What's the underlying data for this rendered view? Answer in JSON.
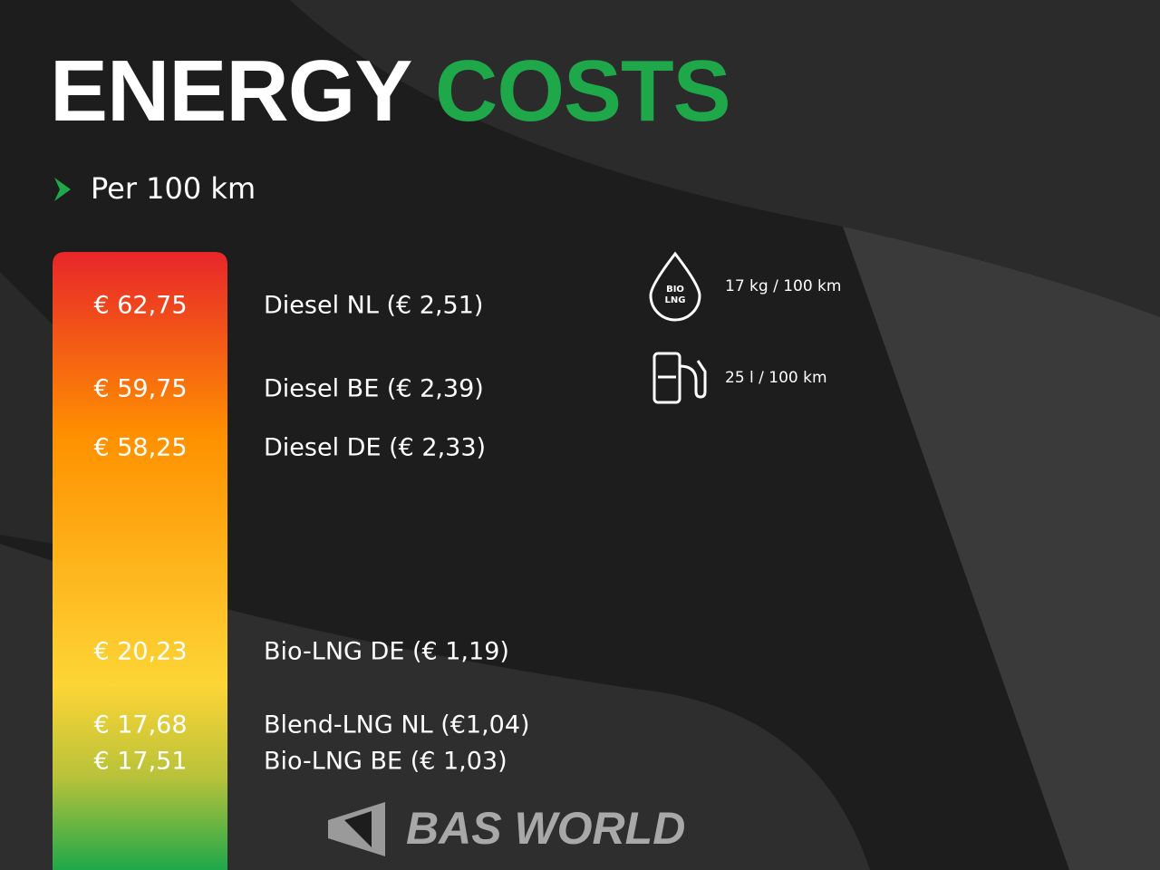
{
  "header": {
    "title_white": "ENERGY",
    "title_green": "COSTS",
    "subtitle": "Per 100 km"
  },
  "items": [
    {
      "cost": "€ 62,75",
      "label": "Diesel NL (€ 2,51)"
    },
    {
      "cost": "€ 59,75",
      "label": "Diesel BE (€ 2,39)"
    },
    {
      "cost": "€ 58,25",
      "label": "Diesel DE (€ 2,33)"
    },
    {
      "cost": "€ 20,23",
      "label": "Bio-LNG DE (€ 1,19)"
    },
    {
      "cost": "€ 17,68",
      "label": "Blend-LNG NL (€1,04)"
    },
    {
      "cost": "€ 17,51",
      "label": "Bio-LNG BE (€ 1,03)"
    }
  ],
  "consumption": [
    {
      "icon_text": [
        "BIO",
        "LNG"
      ],
      "text": "17 kg / 100 km"
    },
    {
      "text": "25 l / 100 km"
    }
  ],
  "logo": "BAS WORLD"
}
